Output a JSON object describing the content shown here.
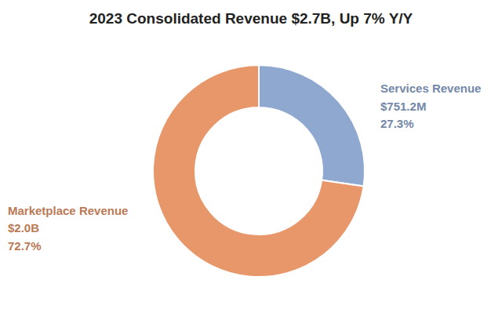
{
  "chart_data": {
    "type": "pie",
    "title": "2023 Consolidated Revenue $2.7B, Up 7% Y/Y",
    "categories": [
      "Services Revenue",
      "Marketplace Revenue"
    ],
    "values": [
      27.3,
      72.7
    ],
    "value_labels": [
      "27.3%",
      "72.7%"
    ],
    "amounts": [
      751200000,
      2000000000
    ],
    "amount_labels": [
      "$751.2M",
      "$2.0B"
    ],
    "colors": [
      "#8fa8d0",
      "#e8976a"
    ],
    "data_labels": true
  }
}
